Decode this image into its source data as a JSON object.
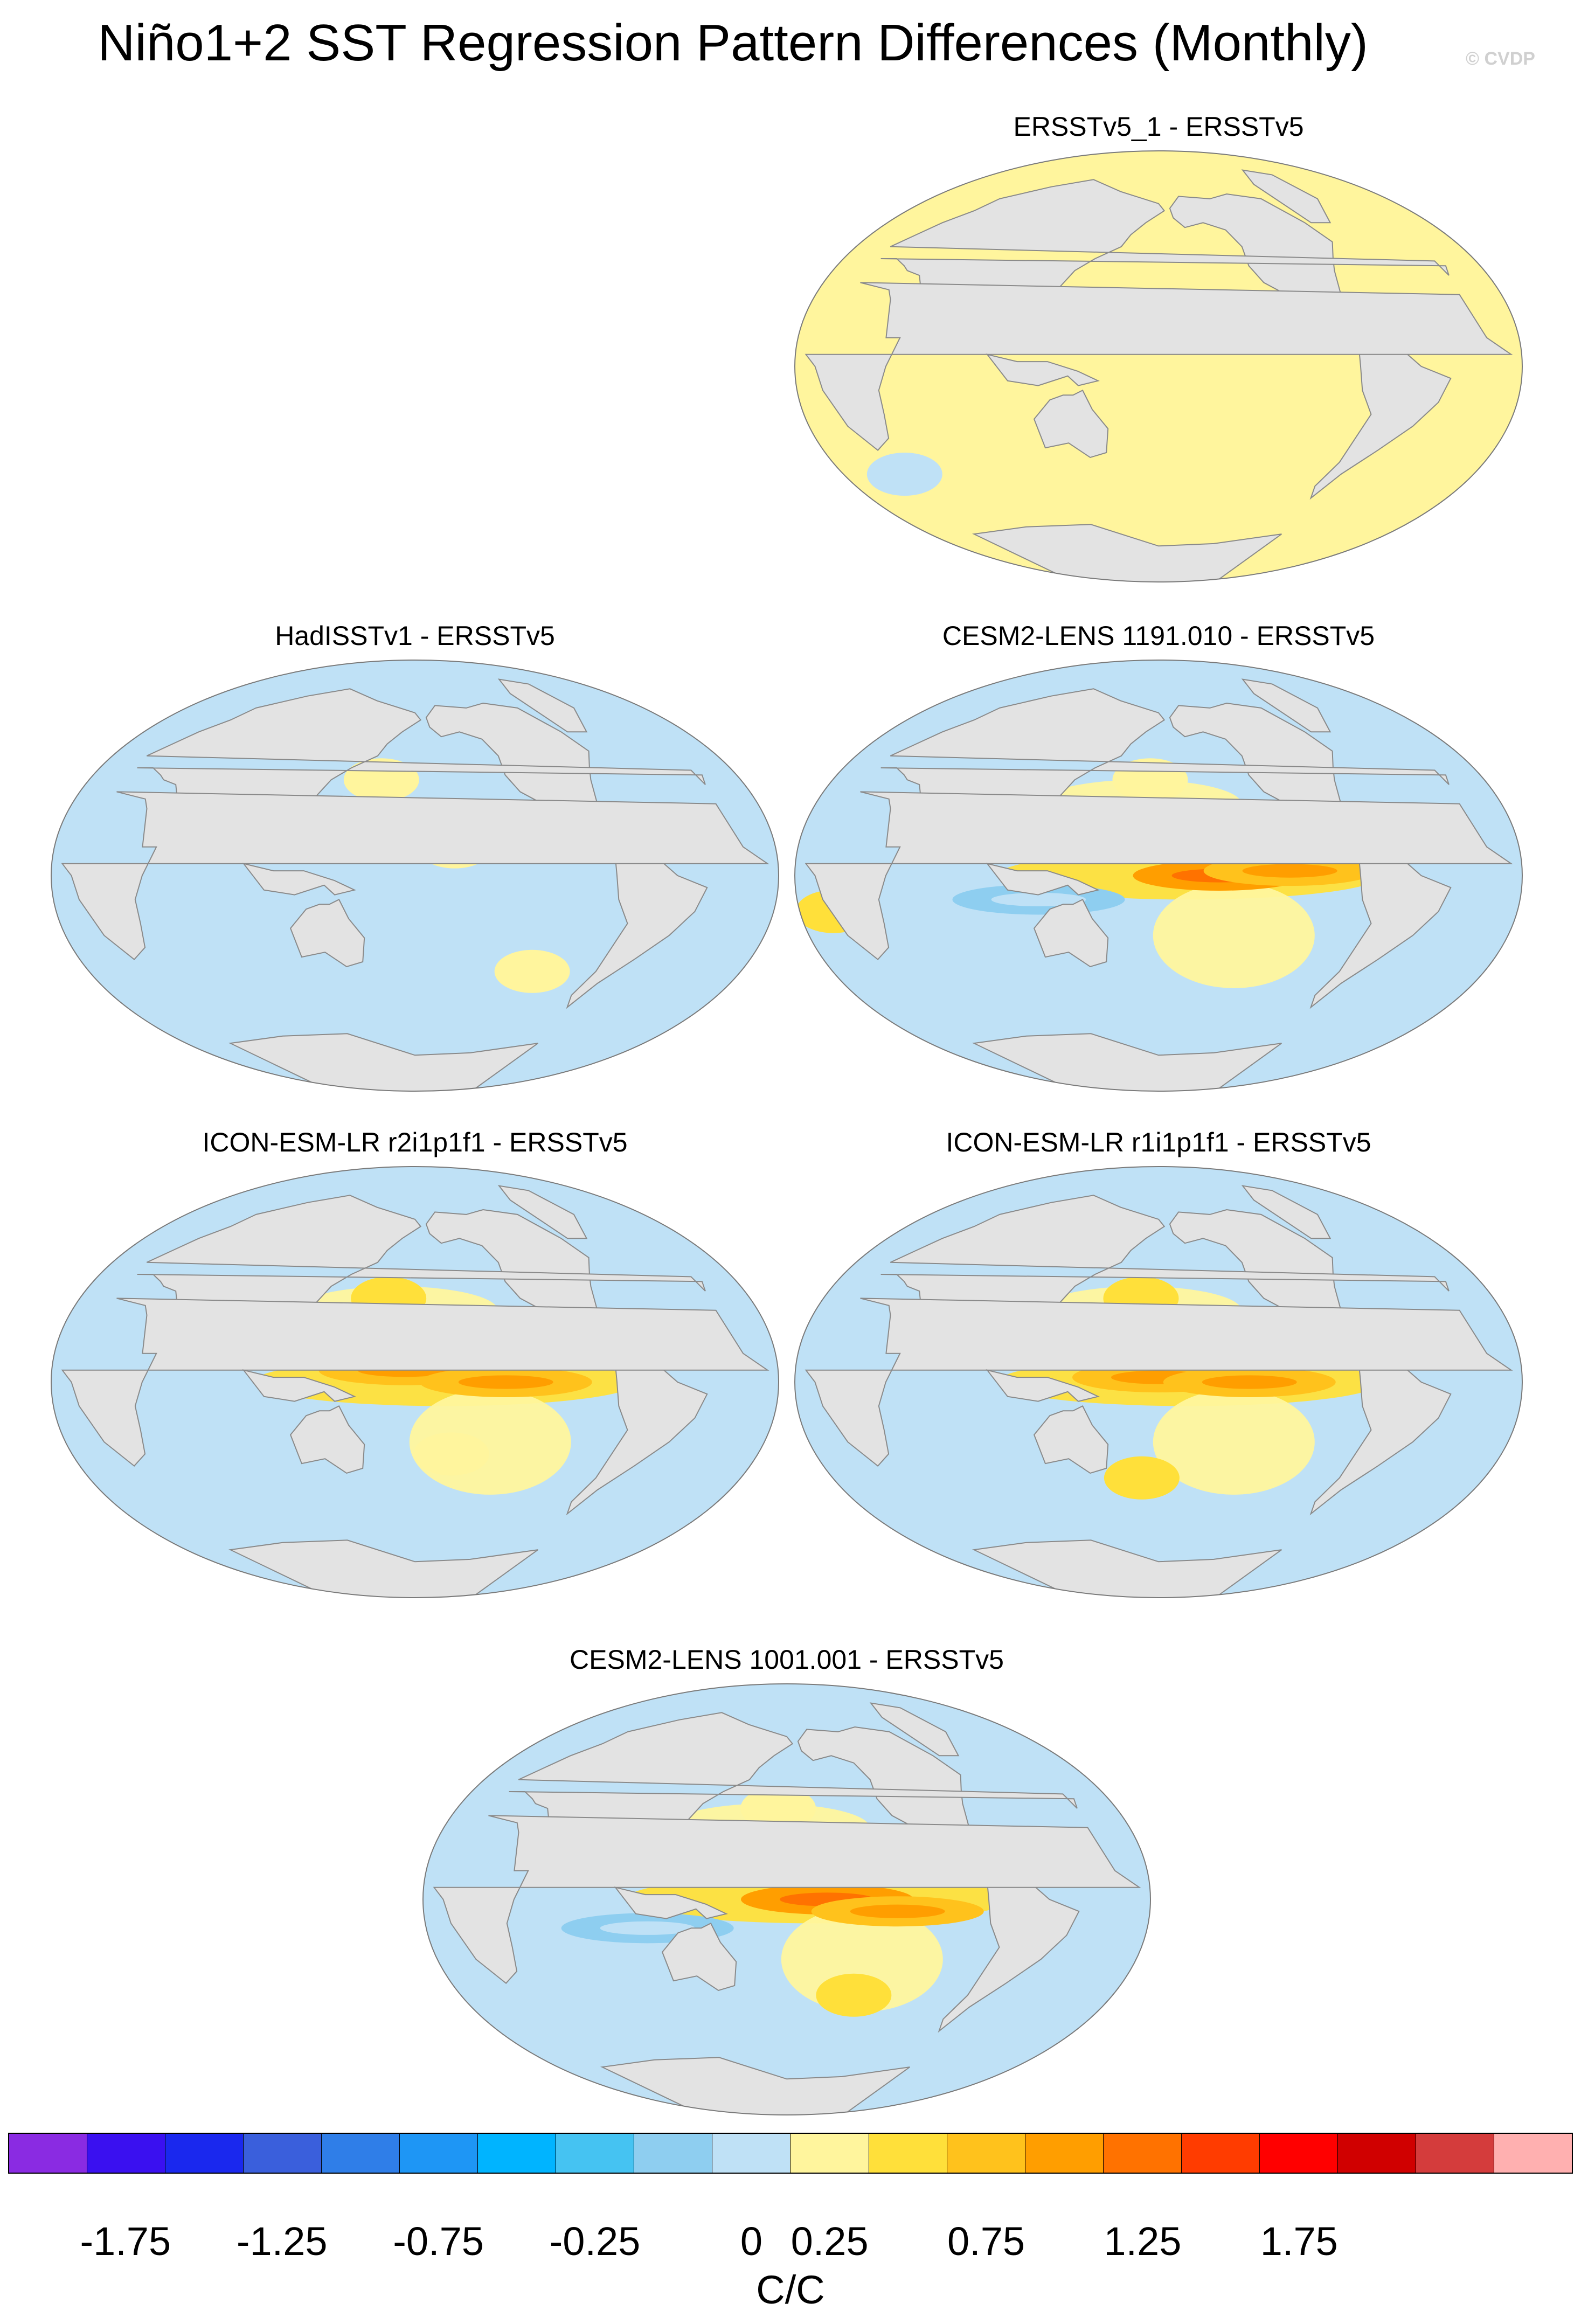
{
  "title": "Niño1+2 SST Regression Pattern Differences (Monthly)",
  "credit": "© CVDP",
  "colors": {
    "land": "#e3e3e3",
    "coast": "#8a8a8a",
    "ocean_neutral_pos": "#fff59d",
    "ocean_neutral_neg": "#bfe1f6"
  },
  "chart_data": [
    {
      "type": "heatmap",
      "title": "ERSSTv5_1 - ERSSTv5",
      "pattern": "near-zero",
      "features": [
        {
          "lon": 20,
          "lat": -45,
          "value": -0.1
        },
        {
          "lon": 160,
          "lat": 15,
          "value": 0.15
        },
        {
          "lon": -150,
          "lat": 50,
          "value": 0.1
        },
        {
          "lon": 40,
          "lat": 30,
          "value": 0.1
        }
      ]
    },
    {
      "type": "heatmap",
      "title": "HadISSTv1 - ERSSTv5",
      "pattern": "weak-negative",
      "features": [
        {
          "lon": -160,
          "lat": 12,
          "value": 0.1
        },
        {
          "lon": 160,
          "lat": 40,
          "value": 0.15
        },
        {
          "lon": -110,
          "lat": -40,
          "value": 0.1
        },
        {
          "lon": -140,
          "lat": -10,
          "value": -0.25
        }
      ]
    },
    {
      "type": "heatmap",
      "title": "CESM2-LENS 1191.010 - ERSSTv5",
      "pattern": "equatorial-pacific-positive",
      "features": [
        {
          "lon": -150,
          "lat": 0,
          "value": 0.75
        },
        {
          "lon": -115,
          "lat": 2,
          "value": 0.5
        },
        {
          "lon": 175,
          "lat": 40,
          "value": 0.15
        },
        {
          "lon": 15,
          "lat": -15,
          "value": 0.35
        },
        {
          "lon": 120,
          "lat": -10,
          "value": -0.5
        }
      ]
    },
    {
      "type": "heatmap",
      "title": "ICON-ESM-LR r2i1p1f1 - ERSSTv5",
      "pattern": "equatorial-pacific-positive",
      "features": [
        {
          "lon": 175,
          "lat": 5,
          "value": 0.5
        },
        {
          "lon": -135,
          "lat": 0,
          "value": 0.5
        },
        {
          "lon": 165,
          "lat": 35,
          "value": 0.25
        },
        {
          "lon": -160,
          "lat": -30,
          "value": 0.15
        },
        {
          "lon": 60,
          "lat": -20,
          "value": -0.25
        }
      ]
    },
    {
      "type": "heatmap",
      "title": "ICON-ESM-LR r1i1p1f1 - ERSSTv5",
      "pattern": "equatorial-pacific-positive",
      "features": [
        {
          "lon": 180,
          "lat": 2,
          "value": 0.5
        },
        {
          "lon": -135,
          "lat": 0,
          "value": 0.5
        },
        {
          "lon": 170,
          "lat": 35,
          "value": 0.25
        },
        {
          "lon": 170,
          "lat": -40,
          "value": 0.25
        },
        {
          "lon": 70,
          "lat": -20,
          "value": -0.25
        }
      ]
    },
    {
      "type": "heatmap",
      "title": "CESM2-LENS 1001.001 - ERSSTv5",
      "pattern": "equatorial-pacific-positive",
      "features": [
        {
          "lon": -160,
          "lat": 0,
          "value": 0.75
        },
        {
          "lon": -125,
          "lat": -5,
          "value": 0.5
        },
        {
          "lon": 175,
          "lat": 38,
          "value": 0.15
        },
        {
          "lon": -140,
          "lat": -40,
          "value": 0.25
        },
        {
          "lon": 110,
          "lat": -12,
          "value": -0.5
        }
      ]
    }
  ],
  "colorbar": {
    "label": "C/C",
    "colors": [
      "#8a2be2",
      "#3a10f0",
      "#1a28ee",
      "#3a5fdc",
      "#2f7ee8",
      "#1e96f5",
      "#00b4ff",
      "#45c3f2",
      "#8ecef0",
      "#bfe1f6",
      "#fff59d",
      "#ffe03a",
      "#ffc21c",
      "#ff9e00",
      "#ff7200",
      "#ff3c00",
      "#ff0000",
      "#d00000",
      "#d43c3c",
      "#ffb0b0"
    ],
    "ticks": [
      "-1.75",
      "-1.25",
      "-0.75",
      "-0.25",
      "0",
      "0.25",
      "0.75",
      "1.25",
      "1.75"
    ]
  }
}
